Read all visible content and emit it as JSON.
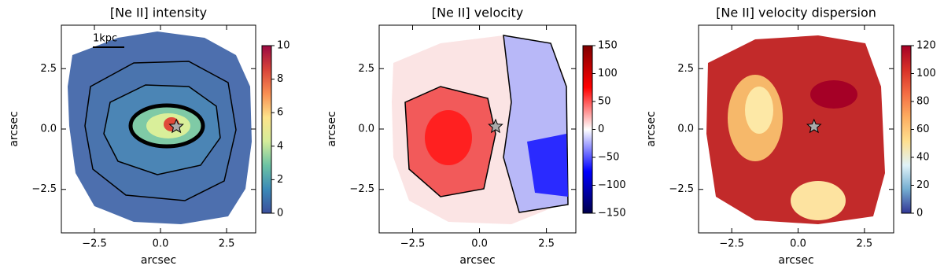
{
  "chart_data": [
    {
      "type": "heatmap",
      "title": "[Ne II] intensity",
      "xlabel": "arcsec",
      "ylabel": "arcsec",
      "xlim": [
        -3.75,
        3.6
      ],
      "ylim": [
        -4.3,
        4.3
      ],
      "xticks": [
        {
          "value": -2.5,
          "label": "−2.5"
        },
        {
          "value": 0,
          "label": "0.0"
        },
        2.5
      ],
      "yticks": [
        {
          "value": -2.5,
          "label": "−2.5"
        },
        {
          "value": 0,
          "label": "0.0"
        },
        2.5
      ],
      "colorbar": {
        "lim": [
          0,
          10
        ],
        "ticks": [
          0,
          2,
          4,
          6,
          8,
          10
        ],
        "colors": [
          "#3b4f9c",
          "#3b8ab8",
          "#6cc3a4",
          "#d4ec9a",
          "#fde38a",
          "#f98e52",
          "#d8443a",
          "#9b0a42"
        ]
      },
      "annotation": "1kpc",
      "marker": {
        "x": 0.6,
        "y": 0.1
      }
    },
    {
      "type": "heatmap",
      "title": "[Ne II] velocity",
      "xlabel": "arcsec",
      "ylabel": "arcsec",
      "xlim": [
        -3.75,
        3.6
      ],
      "ylim": [
        -4.3,
        4.3
      ],
      "xticks": [
        {
          "value": -2.5,
          "label": "−2.5"
        },
        {
          "value": 0,
          "label": "0.0"
        },
        2.5
      ],
      "yticks": [
        {
          "value": -2.5,
          "label": "−2.5"
        },
        {
          "value": 0,
          "label": "0.0"
        },
        2.5
      ],
      "colorbar": {
        "lim": [
          -150,
          150
        ],
        "ticks": [
          {
            "value": -150,
            "label": "−150"
          },
          {
            "value": -100,
            "label": "−100"
          },
          {
            "value": -50,
            "label": "−50"
          },
          0,
          50,
          100,
          150
        ],
        "colors": [
          "#00004c",
          "#0000ff",
          "#ffffff",
          "#ff0000",
          "#7f0000"
        ]
      },
      "marker": {
        "x": 0.6,
        "y": 0.1
      }
    },
    {
      "type": "heatmap",
      "title": "[Ne II] velocity dispersion",
      "xlabel": "arcsec",
      "ylabel": "arcsec",
      "xlim": [
        -3.75,
        3.6
      ],
      "ylim": [
        -4.3,
        4.3
      ],
      "xticks": [
        {
          "value": -2.5,
          "label": "−2.5"
        },
        {
          "value": 0,
          "label": "0.0"
        },
        2.5
      ],
      "yticks": [
        {
          "value": -2.5,
          "label": "−2.5"
        },
        {
          "value": 0,
          "label": "0.0"
        },
        2.5
      ],
      "colorbar": {
        "lim": [
          0,
          120
        ],
        "ticks": [
          0,
          20,
          40,
          60,
          80,
          100,
          120
        ],
        "colors": [
          "#313695",
          "#74add1",
          "#e0f3f8",
          "#fee090",
          "#fdae61",
          "#f46d43",
          "#d73027",
          "#a50026"
        ]
      },
      "marker": {
        "x": 0.6,
        "y": 0.1
      }
    }
  ]
}
